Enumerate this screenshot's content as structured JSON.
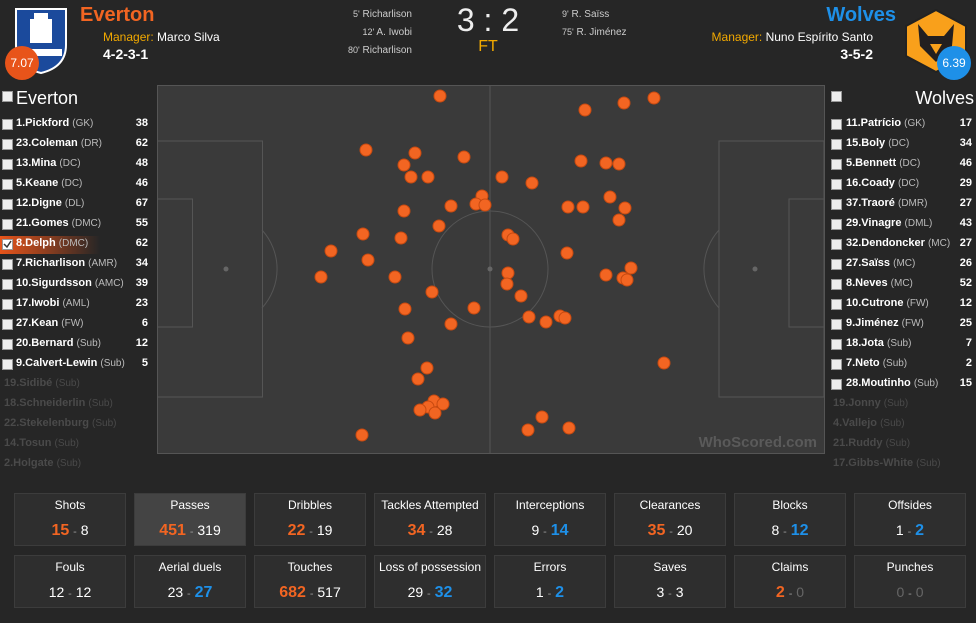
{
  "home": {
    "name": "Everton",
    "manager_label": "Manager:",
    "manager": "Marco Silva",
    "formation": "4-2-3-1",
    "rating": "7.07",
    "goals": [
      {
        "minute": "5'",
        "player": "Richarlison"
      },
      {
        "minute": "12'",
        "player": "A. Iwobi"
      },
      {
        "minute": "80'",
        "player": "Richarlison"
      }
    ],
    "players": [
      {
        "name": "1.Pickford",
        "position": "(GK)",
        "rating": 38
      },
      {
        "name": "23.Coleman",
        "position": "(DR)",
        "rating": 62
      },
      {
        "name": "13.Mina",
        "position": "(DC)",
        "rating": 48
      },
      {
        "name": "5.Keane",
        "position": "(DC)",
        "rating": 46
      },
      {
        "name": "12.Digne",
        "position": "(DL)",
        "rating": 67
      },
      {
        "name": "21.Gomes",
        "position": "(DMC)",
        "rating": 55
      },
      {
        "name": "8.Delph",
        "position": "(DMC)",
        "rating": 62
      },
      {
        "name": "7.Richarlison",
        "position": "(AMR)",
        "rating": 34
      },
      {
        "name": "10.Sigurdsson",
        "position": "(AMC)",
        "rating": 39
      },
      {
        "name": "17.Iwobi",
        "position": "(AML)",
        "rating": 23
      },
      {
        "name": "27.Kean",
        "position": "(FW)",
        "rating": 6
      },
      {
        "name": "20.Bernard",
        "position": "(Sub)",
        "rating": 12
      },
      {
        "name": "9.Calvert-Lewin",
        "position": "(Sub)",
        "rating": 5
      }
    ],
    "unused": [
      {
        "name": "19.Sidibé",
        "position": "(Sub)"
      },
      {
        "name": "18.Schneiderlin",
        "position": "(Sub)"
      },
      {
        "name": "22.Stekelenburg",
        "position": "(Sub)"
      },
      {
        "name": "14.Tosun",
        "position": "(Sub)"
      },
      {
        "name": "2.Holgate",
        "position": "(Sub)"
      }
    ]
  },
  "away": {
    "name": "Wolves",
    "manager_label": "Manager:",
    "manager": "Nuno Espírito Santo",
    "formation": "3-5-2",
    "rating": "6.39",
    "goals": [
      {
        "minute": "9'",
        "player": "R. Saïss"
      },
      {
        "minute": "75'",
        "player": "R. Jiménez"
      }
    ],
    "players": [
      {
        "name": "11.Patrício",
        "position": "(GK)",
        "rating": 17
      },
      {
        "name": "15.Boly",
        "position": "(DC)",
        "rating": 34
      },
      {
        "name": "5.Bennett",
        "position": "(DC)",
        "rating": 46
      },
      {
        "name": "16.Coady",
        "position": "(DC)",
        "rating": 29
      },
      {
        "name": "37.Traoré",
        "position": "(DMR)",
        "rating": 27
      },
      {
        "name": "29.Vinagre",
        "position": "(DML)",
        "rating": 43
      },
      {
        "name": "32.Dendoncker",
        "position": "(MC)",
        "rating": 27
      },
      {
        "name": "27.Saïss",
        "position": "(MC)",
        "rating": 26
      },
      {
        "name": "8.Neves",
        "position": "(MC)",
        "rating": 52
      },
      {
        "name": "10.Cutrone",
        "position": "(FW)",
        "rating": 12
      },
      {
        "name": "9.Jiménez",
        "position": "(FW)",
        "rating": 25
      },
      {
        "name": "18.Jota",
        "position": "(Sub)",
        "rating": 7
      },
      {
        "name": "7.Neto",
        "position": "(Sub)",
        "rating": 2
      },
      {
        "name": "28.Moutinho",
        "position": "(Sub)",
        "rating": 15
      }
    ],
    "unused": [
      {
        "name": "19.Jonny",
        "position": "(Sub)"
      },
      {
        "name": "4.Vallejo",
        "position": "(Sub)"
      },
      {
        "name": "21.Ruddy",
        "position": "(Sub)"
      },
      {
        "name": "17.Gibbs-White",
        "position": "(Sub)"
      }
    ]
  },
  "score": {
    "home": "3",
    "separator": ":",
    "away": "2",
    "status": "FT"
  },
  "watermark": "WhoScored.com",
  "stats_separator": "-",
  "stats": [
    {
      "label": "Shots",
      "home": 15,
      "away": 8
    },
    {
      "label": "Passes",
      "home": 451,
      "away": 319
    },
    {
      "label": "Dribbles",
      "home": 22,
      "away": 19
    },
    {
      "label": "Tackles Attempted",
      "home": 34,
      "away": 28
    },
    {
      "label": "Interceptions",
      "home": 9,
      "away": 14
    },
    {
      "label": "Clearances",
      "home": 35,
      "away": 20
    },
    {
      "label": "Blocks",
      "home": 8,
      "away": 12
    },
    {
      "label": "Offsides",
      "home": 1,
      "away": 2
    },
    {
      "label": "Fouls",
      "home": 12,
      "away": 12
    },
    {
      "label": "Aerial duels",
      "home": 23,
      "away": 27
    },
    {
      "label": "Touches",
      "home": 682,
      "away": 517
    },
    {
      "label": "Loss of possession",
      "home": 29,
      "away": 32
    },
    {
      "label": "Errors",
      "home": 1,
      "away": 2
    },
    {
      "label": "Saves",
      "home": 3,
      "away": 3
    },
    {
      "label": "Claims",
      "home": 2,
      "away": 0
    },
    {
      "label": "Punches",
      "home": 0,
      "away": 0
    }
  ]
}
